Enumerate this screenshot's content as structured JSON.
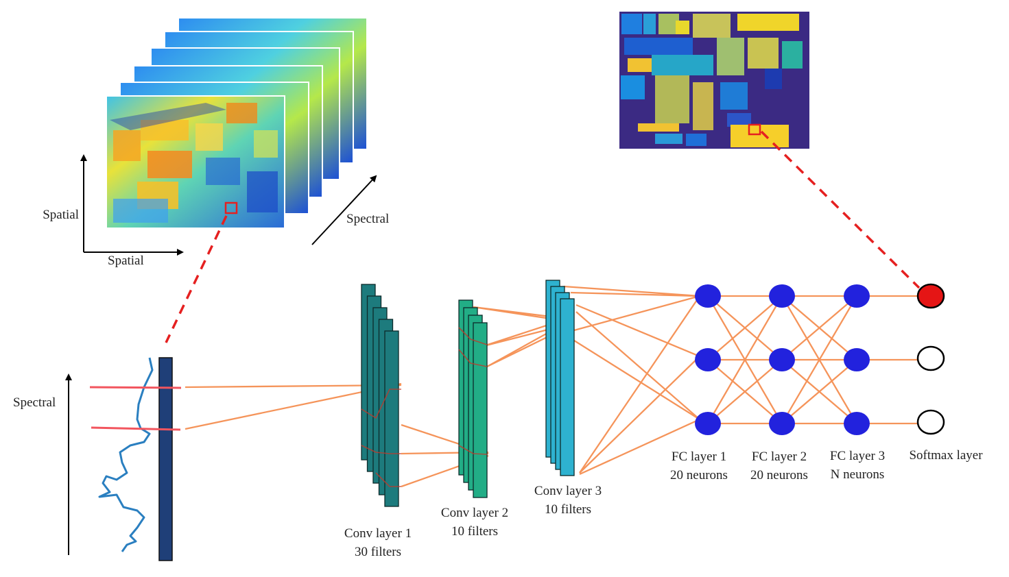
{
  "colors": {
    "connection": "#f5945a",
    "pixel_marker": "#e52020",
    "band_marker": "#f2555e",
    "spectrum_curve": "#2a7fc0",
    "spectrum_bar": "#1f3f78",
    "conv1": "#1d7b7d",
    "conv2": "#22ad86",
    "conv3": "#2eb2d0",
    "neuron": "#2222dd",
    "output_active": "#e51515",
    "map_background": "#3b2a83"
  },
  "axes": {
    "spatial_vertical": "Spatial",
    "spatial_horizontal": "Spatial",
    "spectral_cube": "Spectral",
    "spectral_signature": "Spectral"
  },
  "layers": {
    "conv1": {
      "name": "Conv layer 1",
      "detail": "30 filters"
    },
    "conv2": {
      "name": "Conv layer 2",
      "detail": "10 filters"
    },
    "conv3": {
      "name": "Conv layer 3",
      "detail": "10 filters"
    },
    "fc1": {
      "name": "FC layer 1",
      "detail": "20 neurons"
    },
    "fc2": {
      "name": "FC layer 2",
      "detail": "20 neurons"
    },
    "fc3": {
      "name": "FC layer 3",
      "detail": "N neurons"
    },
    "softmax": {
      "name": "Softmax layer"
    }
  }
}
